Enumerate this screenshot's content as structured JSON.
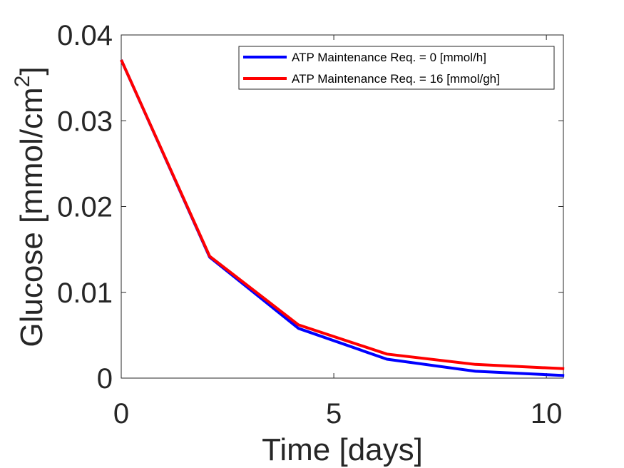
{
  "chart_data": {
    "type": "line",
    "title": "",
    "xlabel": "Time [days]",
    "ylabel_main": "Glucose [mmol/cm",
    "ylabel_superscript": "2",
    "ylabel_close": "]",
    "xlim": [
      0,
      10.4
    ],
    "ylim": [
      0,
      0.04
    ],
    "xticks": [
      0,
      5,
      10
    ],
    "xtick_labels": [
      "0",
      "5",
      "10"
    ],
    "yticks": [
      0,
      0.01,
      0.02,
      0.03,
      0.04
    ],
    "ytick_labels": [
      "0",
      "0.01",
      "0.02",
      "0.03",
      "0.04"
    ],
    "grid": false,
    "box": true,
    "legend_position": "top-right",
    "series": [
      {
        "name": "ATP Maintenance Req. = 0 [mmol/h]",
        "color": "#0000ff",
        "x": [
          0,
          2.08,
          4.17,
          6.25,
          8.33,
          10.42
        ],
        "y": [
          0.0371,
          0.0141,
          0.0058,
          0.0022,
          0.0008,
          0.0003
        ]
      },
      {
        "name": "ATP Maintenance Req. = 16 [mmol/gh]",
        "color": "#ff0000",
        "x": [
          0,
          2.08,
          4.17,
          6.25,
          8.33,
          10.42
        ],
        "y": [
          0.0371,
          0.0142,
          0.0062,
          0.0028,
          0.0016,
          0.0011
        ]
      }
    ]
  }
}
